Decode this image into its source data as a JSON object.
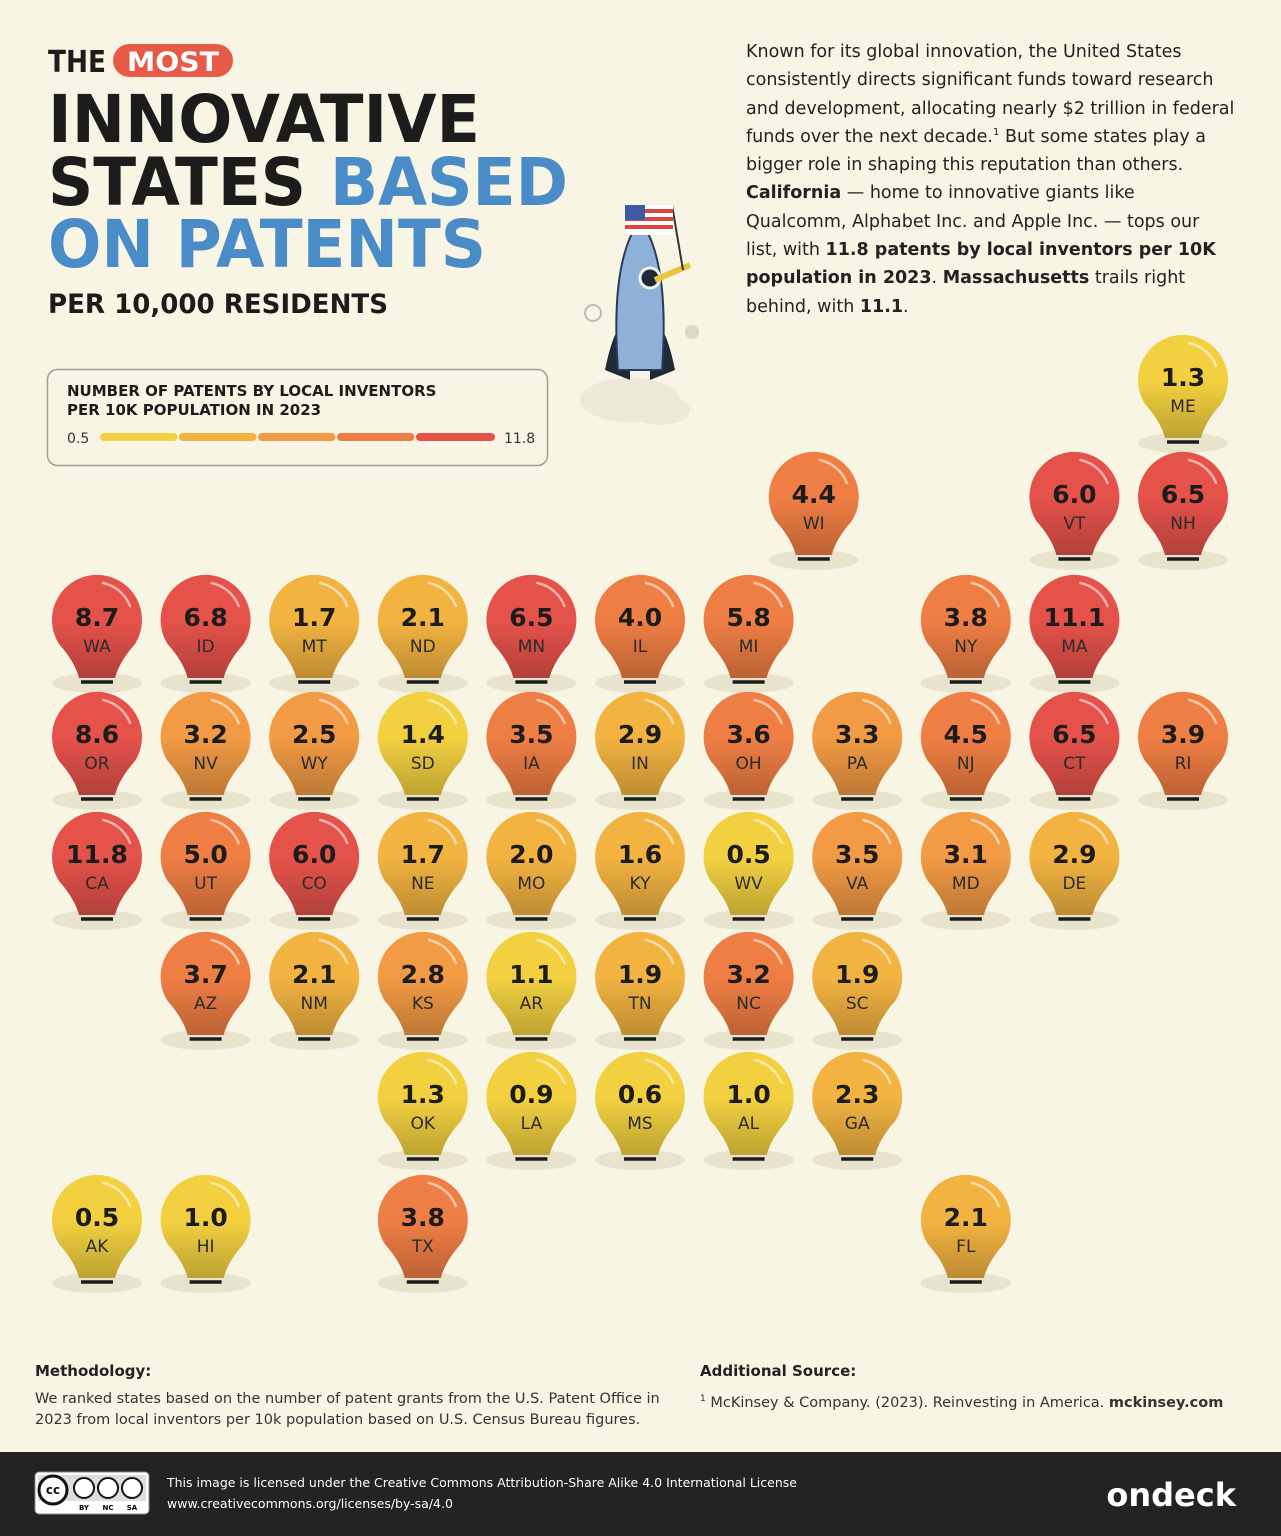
{
  "header": {
    "the": "THE",
    "most": "MOST",
    "line1": "INNOVATIVE",
    "line2a": "STATES",
    "line2b": "BASED",
    "line3": "ON PATENTS",
    "subtitle": "PER 10,000 RESIDENTS"
  },
  "intro": [
    {
      "text": "Known for its global innovation, the United States consistently directs significant funds toward research and development, allocating nearly $2 trillion in federal funds over the next decade."
    },
    {
      "text": "1",
      "sup": true
    },
    {
      "text": " But some states play a bigger role in shaping this reputation than others. "
    },
    {
      "text": "California",
      "bold": true
    },
    {
      "text": " — home to innovative giants like Qualcomm, Alphabet Inc. and Apple Inc. — tops our list, with "
    },
    {
      "text": "11.8 patents by local inventors per 10K population in 2023",
      "bold": true
    },
    {
      "text": ". "
    },
    {
      "text": "Massachusetts",
      "bold": true
    },
    {
      "text": " trails right behind, with "
    },
    {
      "text": "11.1",
      "bold": true
    },
    {
      "text": "."
    }
  ],
  "chart_data": {
    "type": "tilemap",
    "legend": {
      "title_lines": [
        "NUMBER OF PATENTS BY LOCAL INVENTORS",
        "PER 10K POPULATION IN 2023"
      ],
      "min": 0.5,
      "max": 11.8,
      "colors": [
        "#f2d040",
        "#f2b341",
        "#f29a44",
        "#ef7e44",
        "#e4524a"
      ]
    },
    "categories": [
      "ME",
      "WI",
      "VT",
      "NH",
      "WA",
      "ID",
      "MT",
      "ND",
      "MN",
      "IL",
      "MI",
      "NY",
      "MA",
      "OR",
      "NV",
      "WY",
      "SD",
      "IA",
      "IN",
      "OH",
      "PA",
      "NJ",
      "CT",
      "RI",
      "CA",
      "UT",
      "CO",
      "NE",
      "MO",
      "KY",
      "WV",
      "VA",
      "MD",
      "DE",
      "AZ",
      "NM",
      "KS",
      "AR",
      "TN",
      "NC",
      "SC",
      "OK",
      "LA",
      "MS",
      "AL",
      "GA",
      "AK",
      "HI",
      "TX",
      "FL"
    ],
    "values": [
      1.3,
      4.4,
      6.0,
      6.5,
      8.7,
      6.8,
      1.7,
      2.1,
      6.5,
      4.0,
      5.8,
      3.8,
      11.1,
      8.6,
      3.2,
      2.5,
      1.4,
      3.5,
      2.9,
      3.6,
      3.3,
      4.5,
      6.5,
      3.9,
      11.8,
      5.0,
      6.0,
      1.7,
      2.0,
      1.6,
      0.5,
      3.5,
      3.1,
      2.9,
      3.7,
      2.1,
      2.8,
      1.1,
      1.9,
      3.2,
      1.9,
      1.3,
      0.9,
      0.6,
      1.0,
      2.3,
      0.5,
      1.0,
      3.8,
      2.1
    ],
    "value_labels": [
      "1.3",
      "4.4",
      "6.0",
      "6.5",
      "8.7",
      "6.8",
      "1.7",
      "2.1",
      "6.5",
      "4.0",
      "5.8",
      "3.8",
      "11.1",
      "8.6",
      "3.2",
      "2.5",
      "1.4",
      "3.5",
      "2.9",
      "3.6",
      "3.3",
      "4.5",
      "6.5",
      "3.9",
      "11.8",
      "5.0",
      "6.0",
      "1.7",
      "2.0",
      "1.6",
      "0.5",
      "3.5",
      "3.1",
      "2.9",
      "3.7",
      "2.1",
      "2.8",
      "1.1",
      "1.9",
      "3.2",
      "1.9",
      "1.3",
      "0.9",
      "0.6",
      "1.0",
      "2.3",
      "0.5",
      "1.0",
      "3.8",
      "2.1"
    ],
    "colors": [
      "#f2d040",
      "#ef7e44",
      "#e4524a",
      "#e4524a",
      "#e4524a",
      "#e4524a",
      "#f2b341",
      "#f2b341",
      "#e4524a",
      "#ef7e44",
      "#ef7e44",
      "#ef7e44",
      "#e4524a",
      "#e4524a",
      "#f29a44",
      "#f29a44",
      "#f2d040",
      "#ef7e44",
      "#f2b341",
      "#ef7e44",
      "#f29a44",
      "#ef7e44",
      "#e4524a",
      "#ef7e44",
      "#e4524a",
      "#ef7e44",
      "#e4524a",
      "#f2b341",
      "#f2b341",
      "#f2b341",
      "#f2d040",
      "#f29a44",
      "#f29a44",
      "#f2b341",
      "#ef7e44",
      "#f2b341",
      "#f29a44",
      "#f2d040",
      "#f2b341",
      "#ef7e44",
      "#f2b341",
      "#f2d040",
      "#f2d040",
      "#f2d040",
      "#f2d040",
      "#f2b341",
      "#f2d040",
      "#f2d040",
      "#ef7e44",
      "#f2b341"
    ]
  },
  "footer": {
    "methodology_heading": "Methodology:",
    "methodology": "We ranked states based on the number of patent grants from the U.S. Patent Office in 2023 from local inventors per 10k population based on U.S. Census Bureau figures.",
    "source_heading": "Additional Source:",
    "source_sup": "1",
    "source": "McKinsey & Company. (2023). Reinvesting in America. ",
    "source_link": "mckinsey.com",
    "cc": "cc",
    "cc_badge": [
      "BY",
      "NC",
      "SA"
    ],
    "license": "This image is licensed under the Creative Commons Attribution-Share Alike 4.0 International License",
    "license_url": "www.creativecommons.org/licenses/by-sa/4.0",
    "brand": "ondeck"
  }
}
